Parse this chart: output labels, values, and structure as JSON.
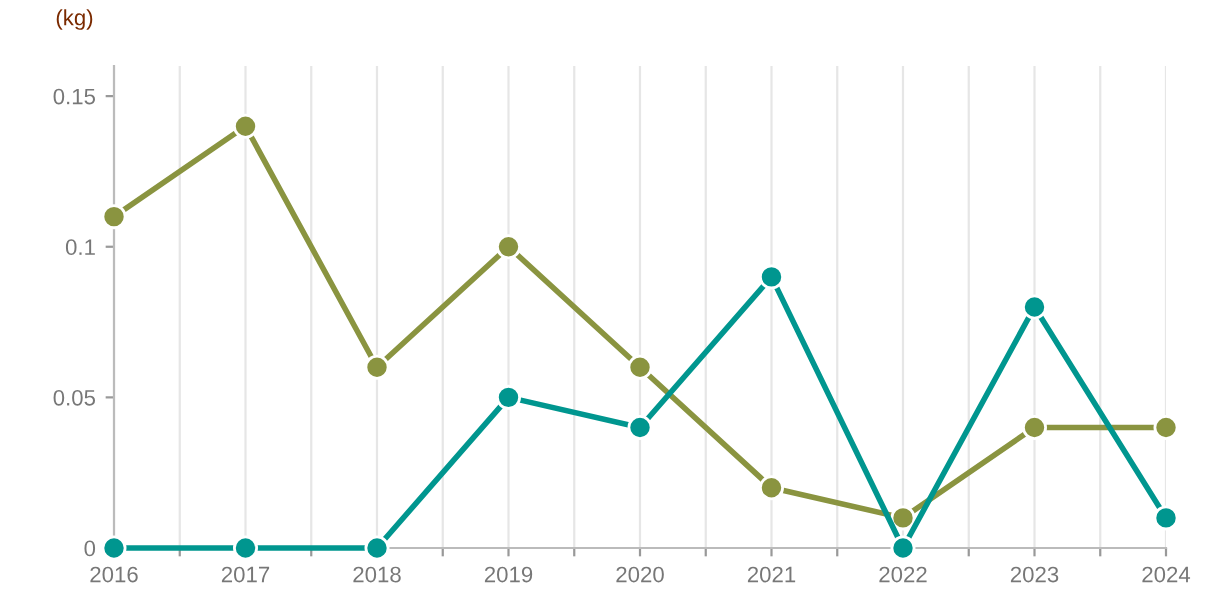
{
  "chart_data": {
    "type": "line",
    "ylabel": "(kg)",
    "x": [
      2016,
      2017,
      2018,
      2019,
      2020,
      2021,
      2022,
      2023,
      2024
    ],
    "series": [
      {
        "color": "#8a9440",
        "values": [
          0.11,
          0.14,
          0.06,
          0.1,
          0.06,
          0.02,
          0.01,
          0.04,
          0.04
        ]
      },
      {
        "color": "#00968f",
        "values": [
          0,
          0,
          0,
          0.05,
          0.04,
          0.09,
          0,
          0.08,
          0.01
        ]
      }
    ],
    "xlim": [
      2016,
      2024
    ],
    "xticks": [
      2016,
      {
        "value": 2016.5,
        "label": null
      },
      2017,
      {
        "value": 2017.5,
        "label": null
      },
      2018,
      {
        "value": 2018.5,
        "label": null
      },
      2019,
      {
        "value": 2019.5,
        "label": null
      },
      2020,
      {
        "value": 2020.5,
        "label": null
      },
      2021,
      {
        "value": 2021.5,
        "label": null
      },
      2022,
      {
        "value": 2022.5,
        "label": null
      },
      2023,
      {
        "value": 2023.5,
        "label": null
      },
      2024
    ],
    "ylim": [
      0,
      0.16
    ],
    "yticks": [
      0,
      0.05,
      0.1,
      0.15
    ],
    "grid": "x",
    "marker": "circle",
    "line_style": "solid",
    "legend": false
  }
}
